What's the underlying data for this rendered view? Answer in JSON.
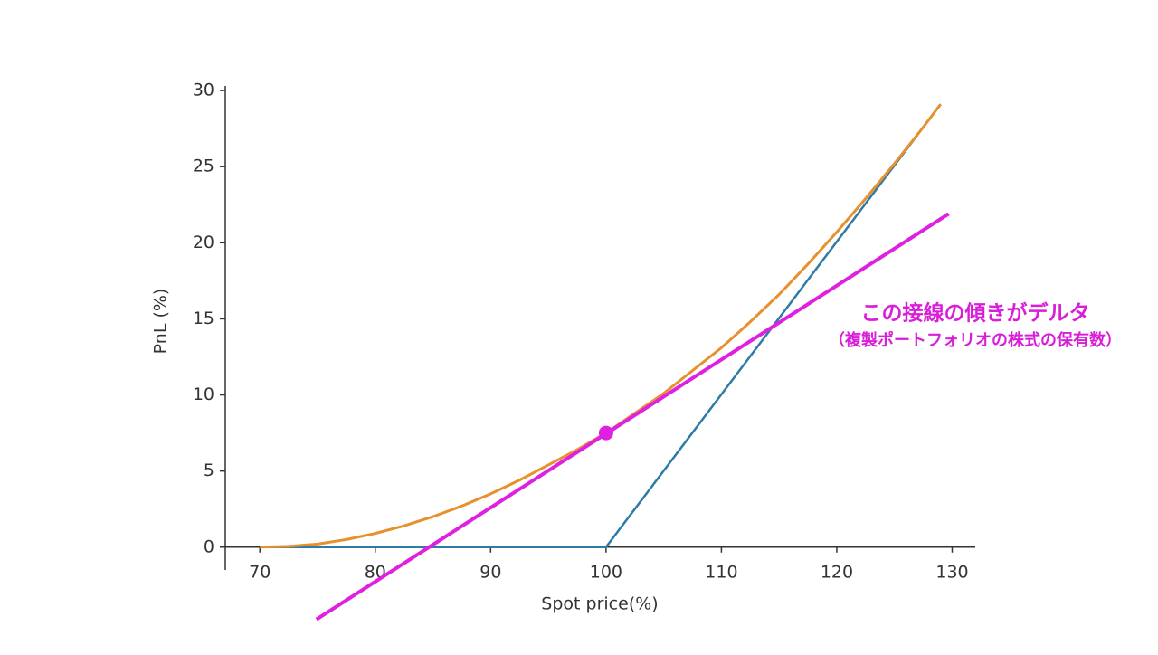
{
  "chart_data": {
    "type": "line",
    "xlabel": "Spot price(%)",
    "ylabel": "PnL (%)",
    "xlim": [
      67,
      132
    ],
    "ylim": [
      -1.5,
      30.3
    ],
    "xticks": [
      70,
      80,
      90,
      100,
      110,
      120,
      130
    ],
    "yticks": [
      0,
      5,
      10,
      15,
      20,
      25,
      30
    ],
    "grid": false,
    "series": [
      {
        "color": "#2e7ba6",
        "width": 2.5,
        "x": [
          70,
          100,
          129
        ],
        "values": [
          0,
          0,
          29.1
        ]
      },
      {
        "color": "#e8902e",
        "width": 3,
        "x": [
          70,
          72.5,
          75,
          77.5,
          80,
          82.5,
          85,
          87.5,
          90,
          92.5,
          95,
          97.5,
          100,
          102.5,
          105,
          107.5,
          110,
          112.5,
          115,
          117.5,
          120,
          122.5,
          125,
          127.5,
          129
        ],
        "values": [
          0,
          0.05,
          0.2,
          0.5,
          0.9,
          1.4,
          2.0,
          2.7,
          3.5,
          4.4,
          5.4,
          6.4,
          7.5,
          8.8,
          10.1,
          11.6,
          13.1,
          14.8,
          16.6,
          18.6,
          20.7,
          22.9,
          25.2,
          27.6,
          29.1
        ]
      },
      {
        "color": "#e020e0",
        "width": 4,
        "x": [
          74.9,
          129.7
        ],
        "values": [
          -4.75,
          21.9
        ]
      }
    ],
    "points": [
      {
        "color": "#e020e0",
        "x": 100,
        "value": 7.5
      }
    ],
    "annotations": [
      {
        "text": "この接線の傾きがデルタ",
        "color": "#d81ed8"
      },
      {
        "text": "（複製ポートフォリオの株式の保有数）",
        "color": "#d81ed8"
      }
    ]
  }
}
